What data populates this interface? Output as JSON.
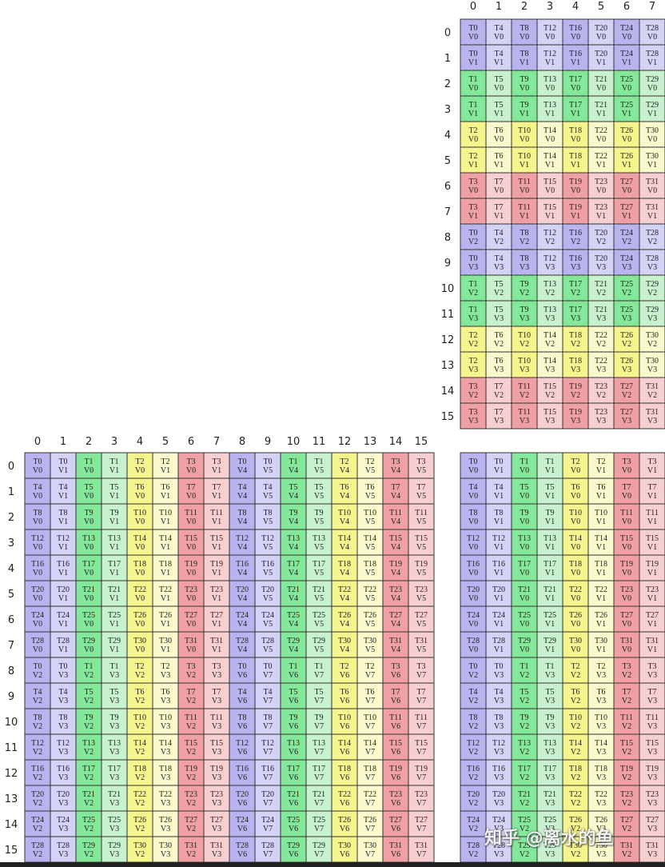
{
  "colors": {
    "g0a": "#b8b4f0",
    "g0b": "#d4d2f6",
    "g1a": "#84e89a",
    "g1b": "#c8f2cf",
    "g2a": "#f6f48c",
    "g2b": "#fbfacc",
    "g3a": "#f0a0a4",
    "g3b": "#f8cfd1"
  },
  "panels": {
    "top_right": {
      "type": "A-layout",
      "rows": 16,
      "cols": 8,
      "row_labels": [
        "0",
        "1",
        "2",
        "3",
        "4",
        "5",
        "6",
        "7",
        "8",
        "9",
        "10",
        "11",
        "12",
        "13",
        "14",
        "15"
      ],
      "col_labels": [
        "0",
        "1",
        "2",
        "3",
        "4",
        "5",
        "6",
        "7"
      ]
    },
    "bottom_left": {
      "type": "C-layout",
      "rows": 16,
      "cols": 16,
      "row_labels": [
        "0",
        "1",
        "2",
        "3",
        "4",
        "5",
        "6",
        "7",
        "8",
        "9",
        "10",
        "11",
        "12",
        "13",
        "14",
        "15"
      ],
      "col_labels": [
        "0",
        "1",
        "2",
        "3",
        "4",
        "5",
        "6",
        "7",
        "8",
        "9",
        "10",
        "11",
        "12",
        "13",
        "14",
        "15"
      ]
    },
    "bottom_right": {
      "type": "C-layout-half",
      "rows": 16,
      "cols": 8,
      "row_labels": [],
      "col_labels": []
    }
  },
  "watermark": "知乎 @离水的鱼"
}
